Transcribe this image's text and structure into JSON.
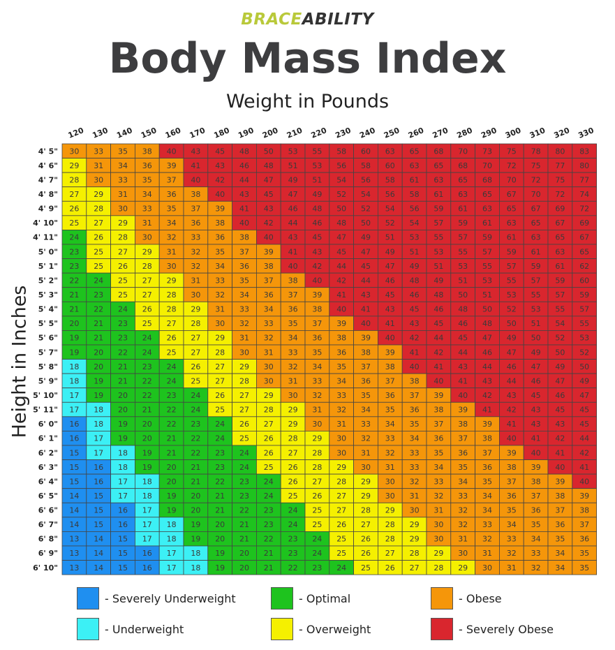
{
  "brand": {
    "part1": "BRACE",
    "part2": "ABILITY"
  },
  "title": "Body Mass Index",
  "colors": {
    "Severely Underweight": "#1f8ff0",
    "Underweight": "#3cf0f5",
    "Optimal": "#1ec31e",
    "Overweight": "#f5f000",
    "Obese": "#f5960a",
    "Severely Obese": "#d9262e"
  },
  "legend": [
    {
      "key": "Severely Underweight",
      "label": "- Severely Underweight"
    },
    {
      "key": "Optimal",
      "label": "- Optimal"
    },
    {
      "key": "Obese",
      "label": "- Obese"
    },
    {
      "key": "Underweight",
      "label": "- Underweight"
    },
    {
      "key": "Overweight",
      "label": "- Overweight"
    },
    {
      "key": "Severely Obese",
      "label": "- Severely Obese"
    }
  ],
  "chart_data": {
    "type": "heatmap",
    "xlabel": "Weight in Pounds",
    "ylabel": "Height in Inches",
    "x": [
      "120",
      "130",
      "140",
      "150",
      "160",
      "170",
      "180",
      "190",
      "200",
      "210",
      "220",
      "230",
      "240",
      "250",
      "260",
      "270",
      "280",
      "290",
      "300",
      "310",
      "320",
      "330"
    ],
    "y": [
      "4' 5\"",
      "4' 6\"",
      "4' 7\"",
      "4' 8\"",
      "4' 9\"",
      "4' 10\"",
      "4' 11\"",
      "5' 0\"",
      "5' 1\"",
      "5' 2\"",
      "5' 3\"",
      "5' 4\"",
      "5' 5\"",
      "5' 6\"",
      "5' 7\"",
      "5' 8\"",
      "5' 9\"",
      "5' 10\"",
      "5' 11\"",
      "6' 0\"",
      "6' 1\"",
      "6' 2\"",
      "6' 3\"",
      "6' 4\"",
      "6' 5\"",
      "6' 6\"",
      "6' 7\"",
      "6' 8\"",
      "6' 9\"",
      "6' 10\""
    ],
    "values": [
      [
        30,
        33,
        35,
        38,
        40,
        43,
        45,
        48,
        50,
        53,
        55,
        58,
        60,
        63,
        65,
        68,
        70,
        73,
        75,
        78,
        80,
        83
      ],
      [
        29,
        31,
        34,
        36,
        39,
        41,
        43,
        46,
        48,
        51,
        53,
        56,
        58,
        60,
        63,
        65,
        68,
        70,
        72,
        75,
        77,
        80
      ],
      [
        28,
        30,
        33,
        35,
        37,
        40,
        42,
        44,
        47,
        49,
        51,
        54,
        56,
        58,
        61,
        63,
        65,
        68,
        70,
        72,
        75,
        77
      ],
      [
        27,
        29,
        31,
        34,
        36,
        38,
        40,
        43,
        45,
        47,
        49,
        52,
        54,
        56,
        58,
        61,
        63,
        65,
        67,
        70,
        72,
        74
      ],
      [
        26,
        28,
        30,
        33,
        35,
        37,
        39,
        41,
        43,
        46,
        48,
        50,
        52,
        54,
        56,
        59,
        61,
        63,
        65,
        67,
        69,
        72
      ],
      [
        25,
        27,
        29,
        31,
        34,
        36,
        38,
        40,
        42,
        44,
        46,
        48,
        50,
        52,
        54,
        57,
        59,
        61,
        63,
        65,
        67,
        69
      ],
      [
        24,
        26,
        28,
        30,
        32,
        33,
        36,
        38,
        40,
        43,
        45,
        47,
        49,
        51,
        53,
        55,
        57,
        59,
        61,
        63,
        65,
        67
      ],
      [
        23,
        25,
        27,
        29,
        31,
        32,
        35,
        37,
        39,
        41,
        43,
        45,
        47,
        49,
        51,
        53,
        55,
        57,
        59,
        61,
        63,
        65
      ],
      [
        23,
        25,
        26,
        28,
        30,
        32,
        34,
        36,
        38,
        40,
        42,
        44,
        45,
        47,
        49,
        51,
        53,
        55,
        57,
        59,
        61,
        62
      ],
      [
        22,
        24,
        25,
        27,
        29,
        31,
        33,
        35,
        37,
        38,
        40,
        42,
        44,
        46,
        48,
        49,
        51,
        53,
        55,
        57,
        59,
        60
      ],
      [
        21,
        23,
        25,
        27,
        28,
        30,
        32,
        34,
        36,
        37,
        39,
        41,
        43,
        45,
        46,
        48,
        50,
        51,
        53,
        55,
        57,
        59
      ],
      [
        21,
        22,
        24,
        26,
        28,
        29,
        31,
        33,
        34,
        36,
        38,
        40,
        41,
        43,
        45,
        46,
        48,
        50,
        52,
        53,
        55,
        57
      ],
      [
        20,
        21,
        23,
        25,
        27,
        28,
        30,
        32,
        33,
        35,
        37,
        39,
        40,
        41,
        43,
        45,
        46,
        48,
        50,
        51,
        54,
        55
      ],
      [
        19,
        21,
        23,
        24,
        26,
        27,
        29,
        31,
        32,
        34,
        36,
        38,
        39,
        40,
        42,
        44,
        45,
        47,
        49,
        50,
        52,
        53
      ],
      [
        19,
        20,
        22,
        24,
        25,
        27,
        28,
        30,
        31,
        33,
        35,
        36,
        38,
        39,
        41,
        42,
        44,
        46,
        47,
        49,
        50,
        52
      ],
      [
        18,
        20,
        21,
        23,
        24,
        26,
        27,
        29,
        30,
        32,
        34,
        35,
        37,
        38,
        40,
        41,
        43,
        44,
        46,
        47,
        49,
        50
      ],
      [
        18,
        19,
        21,
        22,
        24,
        25,
        27,
        28,
        30,
        31,
        33,
        34,
        36,
        37,
        38,
        40,
        41,
        43,
        44,
        46,
        47,
        49
      ],
      [
        17,
        19,
        20,
        22,
        23,
        24,
        26,
        27,
        29,
        30,
        32,
        33,
        35,
        36,
        37,
        39,
        40,
        42,
        43,
        45,
        46,
        47
      ],
      [
        17,
        18,
        20,
        21,
        22,
        24,
        25,
        27,
        28,
        29,
        31,
        32,
        34,
        35,
        36,
        38,
        39,
        41,
        42,
        43,
        45,
        45
      ],
      [
        16,
        18,
        19,
        20,
        22,
        23,
        24,
        26,
        27,
        29,
        30,
        31,
        33,
        34,
        35,
        37,
        38,
        39,
        41,
        43,
        43,
        45
      ],
      [
        16,
        17,
        19,
        20,
        21,
        22,
        24,
        25,
        26,
        28,
        29,
        30,
        32,
        33,
        34,
        36,
        37,
        38,
        40,
        41,
        42,
        44
      ],
      [
        15,
        17,
        18,
        19,
        21,
        22,
        23,
        24,
        26,
        27,
        28,
        30,
        31,
        32,
        33,
        35,
        36,
        37,
        39,
        40,
        41,
        42
      ],
      [
        15,
        16,
        18,
        19,
        20,
        21,
        23,
        24,
        25,
        26,
        28,
        29,
        30,
        31,
        33,
        34,
        35,
        36,
        38,
        39,
        40,
        41
      ],
      [
        15,
        16,
        17,
        18,
        20,
        21,
        22,
        23,
        24,
        26,
        27,
        28,
        29,
        30,
        32,
        33,
        34,
        35,
        37,
        38,
        39,
        40
      ],
      [
        14,
        15,
        17,
        18,
        19,
        20,
        21,
        23,
        24,
        25,
        26,
        27,
        29,
        30,
        31,
        32,
        33,
        34,
        36,
        37,
        38,
        39
      ],
      [
        14,
        15,
        16,
        17,
        19,
        20,
        21,
        22,
        23,
        24,
        25,
        27,
        28,
        29,
        30,
        31,
        32,
        34,
        35,
        36,
        37,
        38
      ],
      [
        14,
        15,
        16,
        17,
        18,
        19,
        20,
        21,
        23,
        24,
        25,
        26,
        27,
        28,
        29,
        30,
        32,
        33,
        34,
        35,
        36,
        37
      ],
      [
        13,
        14,
        15,
        17,
        18,
        19,
        20,
        21,
        22,
        23,
        24,
        25,
        26,
        28,
        29,
        30,
        31,
        32,
        33,
        34,
        35,
        36
      ],
      [
        13,
        14,
        15,
        16,
        17,
        18,
        19,
        20,
        21,
        23,
        24,
        25,
        26,
        27,
        28,
        29,
        30,
        31,
        32,
        33,
        34,
        35
      ],
      [
        13,
        14,
        15,
        16,
        17,
        18,
        19,
        20,
        21,
        22,
        23,
        24,
        25,
        26,
        27,
        28,
        29,
        30,
        31,
        32,
        34,
        35
      ]
    ],
    "category_scale": [
      {
        "key": "Severely Underweight",
        "max": 16
      },
      {
        "key": "Underweight",
        "max": 18
      },
      {
        "key": "Optimal",
        "max": 24
      },
      {
        "key": "Overweight",
        "max": 29
      },
      {
        "key": "Obese",
        "max": 39
      },
      {
        "key": "Severely Obese",
        "max": 999
      }
    ]
  }
}
